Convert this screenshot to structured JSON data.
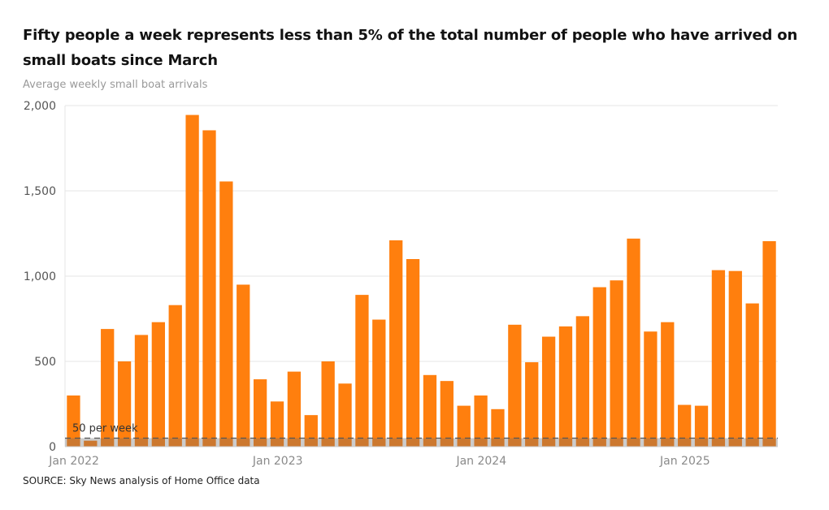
{
  "header": {
    "title": "Fifty people a week represents less than 5% of the total number of people who have arrived on small boats since March",
    "subtitle": "Average weekly small boat arrivals"
  },
  "footer": {
    "source": "SOURCE: Sky News analysis of Home Office data"
  },
  "chart_data": {
    "type": "bar",
    "ylabel": "Average weekly small boat arrivals",
    "ylim": [
      0,
      2000
    ],
    "yticks": [
      0,
      500,
      1000,
      1500,
      2000
    ],
    "ytick_labels": [
      "0",
      "500",
      "1,000",
      "1,500",
      "2,000"
    ],
    "xtick_labels": [
      {
        "label": "Jan 2022",
        "index": 0
      },
      {
        "label": "Jan 2023",
        "index": 12
      },
      {
        "label": "Jan 2024",
        "index": 24
      },
      {
        "label": "Jan 2025",
        "index": 36
      }
    ],
    "bar_color": "#ff7f0e",
    "values": [
      300,
      35,
      690,
      500,
      655,
      730,
      830,
      1945,
      1855,
      1555,
      950,
      395,
      265,
      440,
      185,
      500,
      370,
      890,
      745,
      1210,
      1100,
      420,
      385,
      240,
      300,
      220,
      715,
      495,
      645,
      705,
      765,
      935,
      975,
      1220,
      675,
      730,
      245,
      240,
      1035,
      1030,
      840,
      1205
    ],
    "reference_line": {
      "value": 50,
      "label": "50 per week",
      "color": "#555555"
    },
    "grid": true
  }
}
